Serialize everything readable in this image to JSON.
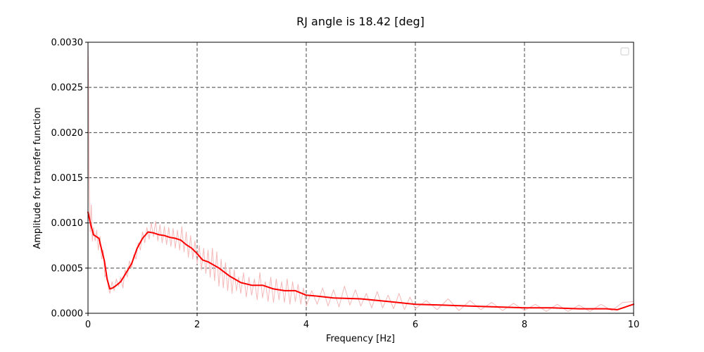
{
  "chart_data": {
    "type": "line",
    "title": "RJ angle is 18.42 [deg]",
    "xlabel": "Frequency [Hz]",
    "ylabel": "Amplitude for transfer function",
    "xlim": [
      0,
      10
    ],
    "ylim": [
      0,
      0.003
    ],
    "x_ticks": [
      "0",
      "2",
      "4",
      "6",
      "8",
      "10"
    ],
    "y_ticks": [
      "0.0000",
      "0.0005",
      "0.0010",
      "0.0015",
      "0.0020",
      "0.0025",
      "0.0030"
    ],
    "grid": true,
    "legend": "top-right (empty)",
    "colors": {
      "smoothed": "#ff0000",
      "raw": "#f4b8b8",
      "grid": "#444444"
    },
    "series": [
      {
        "style": "smoothed",
        "x": [
          0,
          0.05,
          0.1,
          0.2,
          0.3,
          0.35,
          0.4,
          0.45,
          0.5,
          0.6,
          0.7,
          0.8,
          0.9,
          1.0,
          1.1,
          1.2,
          1.3,
          1.4,
          1.5,
          1.6,
          1.7,
          1.8,
          1.9,
          2.0,
          2.1,
          2.2,
          2.4,
          2.6,
          2.8,
          3.0,
          3.2,
          3.4,
          3.6,
          3.8,
          4.0,
          4.2,
          4.5,
          5.0,
          5.5,
          6.0,
          6.5,
          7.0,
          7.5,
          8.0,
          8.5,
          9.0,
          9.5,
          9.7,
          10.0
        ],
        "y": [
          0.00112,
          0.00098,
          0.00087,
          0.00083,
          0.00058,
          0.00038,
          0.00027,
          0.00028,
          0.0003,
          0.00035,
          0.00045,
          0.00055,
          0.00072,
          0.00083,
          0.0009,
          0.00089,
          0.00087,
          0.00086,
          0.00084,
          0.00083,
          0.00081,
          0.00076,
          0.00072,
          0.00066,
          0.00059,
          0.00057,
          0.0005,
          0.00041,
          0.00034,
          0.00031,
          0.00031,
          0.00027,
          0.00025,
          0.00025,
          0.0002,
          0.00019,
          0.00017,
          0.00016,
          0.00013,
          0.0001,
          9e-05,
          8e-05,
          7e-05,
          6e-05,
          6e-05,
          5e-05,
          5e-05,
          4e-05,
          0.0001
        ]
      },
      {
        "style": "raw",
        "x": [
          0,
          0.01,
          0.02,
          0.04,
          0.06,
          0.08,
          0.1,
          0.13,
          0.16,
          0.19,
          0.22,
          0.25,
          0.28,
          0.31,
          0.34,
          0.37,
          0.4,
          0.44,
          0.48,
          0.52,
          0.56,
          0.6,
          0.64,
          0.68,
          0.72,
          0.76,
          0.8,
          0.84,
          0.88,
          0.92,
          0.96,
          1.0,
          1.04,
          1.08,
          1.12,
          1.16,
          1.2,
          1.24,
          1.28,
          1.32,
          1.36,
          1.4,
          1.44,
          1.48,
          1.52,
          1.56,
          1.6,
          1.64,
          1.68,
          1.72,
          1.76,
          1.8,
          1.84,
          1.88,
          1.92,
          1.96,
          2.0,
          2.04,
          2.08,
          2.12,
          2.16,
          2.2,
          2.24,
          2.28,
          2.32,
          2.36,
          2.4,
          2.44,
          2.48,
          2.52,
          2.56,
          2.6,
          2.64,
          2.68,
          2.72,
          2.76,
          2.8,
          2.85,
          2.9,
          2.95,
          3.0,
          3.05,
          3.1,
          3.15,
          3.2,
          3.25,
          3.3,
          3.35,
          3.4,
          3.45,
          3.5,
          3.55,
          3.6,
          3.65,
          3.7,
          3.75,
          3.8,
          3.85,
          3.9,
          3.95,
          4.0,
          4.1,
          4.2,
          4.3,
          4.4,
          4.5,
          4.6,
          4.7,
          4.8,
          4.9,
          5.0,
          5.1,
          5.2,
          5.3,
          5.4,
          5.5,
          5.6,
          5.7,
          5.8,
          5.9,
          6.0,
          6.2,
          6.4,
          6.6,
          6.8,
          7.0,
          7.2,
          7.4,
          7.6,
          7.8,
          8.0,
          8.2,
          8.4,
          8.6,
          8.8,
          9.0,
          9.2,
          9.4,
          9.6,
          9.8,
          10.0
        ],
        "y": [
          0.003,
          0.0026,
          0.0015,
          0.0009,
          0.0012,
          0.0008,
          0.00095,
          0.0008,
          0.00092,
          0.0007,
          0.00085,
          0.0006,
          0.0007,
          0.0004,
          0.00045,
          0.0003,
          0.00022,
          0.00035,
          0.00025,
          0.00038,
          0.0003,
          0.0004,
          0.00028,
          0.00048,
          0.0004,
          0.00058,
          0.0005,
          0.00065,
          0.0006,
          0.00078,
          0.0007,
          0.0009,
          0.00078,
          0.00095,
          0.00082,
          0.001,
          0.00085,
          0.00102,
          0.0008,
          0.00098,
          0.00078,
          0.00096,
          0.00076,
          0.00095,
          0.00074,
          0.00094,
          0.00072,
          0.00092,
          0.0007,
          0.00096,
          0.00068,
          0.0009,
          0.00062,
          0.00086,
          0.0006,
          0.0008,
          0.00055,
          0.00075,
          0.00048,
          0.00072,
          0.00044,
          0.0007,
          0.0004,
          0.00072,
          0.00036,
          0.00068,
          0.0003,
          0.0006,
          0.00028,
          0.00056,
          0.00025,
          0.0005,
          0.00022,
          0.00048,
          0.00025,
          0.0004,
          0.00022,
          0.00045,
          0.00018,
          0.0004,
          0.0002,
          0.00038,
          0.00015,
          0.00045,
          0.00017,
          0.00035,
          0.00013,
          0.0004,
          0.00012,
          0.00038,
          0.00015,
          0.00035,
          0.00012,
          0.00038,
          0.0001,
          0.00035,
          0.00013,
          0.00032,
          0.0001,
          0.00028,
          8e-05,
          0.00025,
          0.0001,
          0.00028,
          8e-05,
          0.00026,
          7e-05,
          0.0003,
          9e-05,
          0.00026,
          8e-05,
          0.00022,
          6e-05,
          0.00024,
          6e-05,
          0.0002,
          5e-05,
          0.00022,
          4e-05,
          0.00018,
          5e-05,
          0.00014,
          4e-05,
          0.00016,
          3e-05,
          0.00014,
          4e-05,
          0.00012,
          3e-05,
          0.00011,
          3e-05,
          0.0001,
          2e-05,
          0.0001,
          2e-05,
          9e-05,
          2e-05,
          0.0001,
          3e-05,
          0.00012,
          0.00013
        ]
      }
    ]
  }
}
